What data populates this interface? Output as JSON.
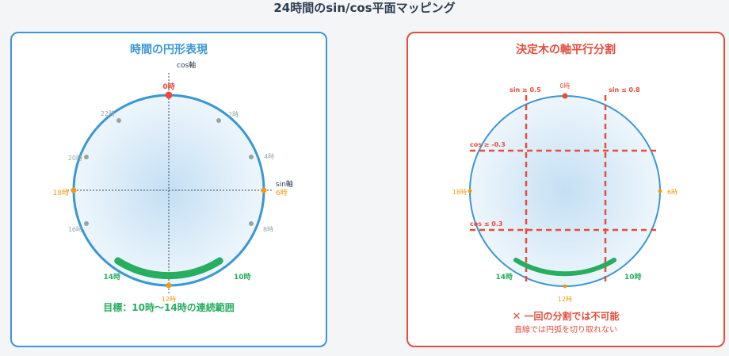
{
  "title": "24時間のsin/cos平面マッピング",
  "left_panel": {
    "title": "時間の円形表現",
    "axis_cos": "cos軸",
    "axis_sin": "sin軸",
    "hour_labels": {
      "h0": "0時",
      "h2": "2時",
      "h4": "4時",
      "h6": "6時",
      "h8": "8時",
      "h10": "10時",
      "h12": "12時",
      "h14": "14時",
      "h16": "16時",
      "h18": "18時",
      "h20": "20時",
      "h22": "22時"
    },
    "goal": "目標：10時〜14時の連続範囲"
  },
  "right_panel": {
    "title": "決定木の軸平行分割",
    "split_sin_ge": "sin ≥ 0.5",
    "split_sin_le": "sin ≤ 0.8",
    "split_cos_ge": "cos ≥ -0.3",
    "split_cos_le": "cos ≤ 0.3",
    "hour_labels": {
      "h0": "0時",
      "h6": "6時",
      "h10": "10時",
      "h12": "12時",
      "h14": "14時",
      "h18": "18時"
    },
    "verdict_icon": "✕",
    "verdict": "一回の分割では不可能",
    "note": "直線では円弧を切り取れない"
  },
  "colors": {
    "circle_stroke": "#3a97d4",
    "arc": "#27ae60",
    "marker_zero": "#e74c3c",
    "marker_cardinal": "#f39c12",
    "marker_minor": "#95a5a6",
    "split_line": "#e74c3c"
  }
}
